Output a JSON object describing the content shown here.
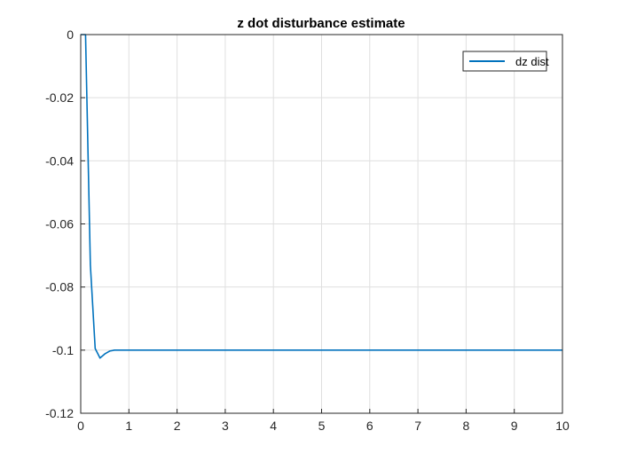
{
  "chart_data": {
    "type": "line",
    "title": "z dot disturbance estimate",
    "xlabel": "",
    "ylabel": "",
    "xlim": [
      0,
      10
    ],
    "ylim": [
      -0.12,
      0
    ],
    "xticks": [
      0,
      1,
      2,
      3,
      4,
      5,
      6,
      7,
      8,
      9,
      10
    ],
    "xtick_labels": [
      "0",
      "1",
      "2",
      "3",
      "4",
      "5",
      "6",
      "7",
      "8",
      "9",
      "10"
    ],
    "yticks": [
      0,
      -0.02,
      -0.04,
      -0.06,
      -0.08,
      -0.1,
      -0.12
    ],
    "ytick_labels": [
      "0",
      "-0.02",
      "-0.04",
      "-0.06",
      "-0.08",
      "-0.1",
      "-0.12"
    ],
    "grid": true,
    "legend_position": "top-right",
    "series": [
      {
        "name": "dz dist",
        "color": "#0072BD",
        "x": [
          0,
          0.1,
          0.2,
          0.3,
          0.4,
          0.5,
          0.6,
          0.7,
          0.8,
          1.0,
          2.0,
          3.0,
          4.0,
          5.0,
          6.0,
          7.0,
          8.0,
          9.0,
          10.0
        ],
        "y": [
          0,
          0,
          -0.073,
          -0.0995,
          -0.1025,
          -0.1012,
          -0.1003,
          -0.1,
          -0.1,
          -0.1,
          -0.1,
          -0.1,
          -0.1,
          -0.1,
          -0.1,
          -0.1,
          -0.1,
          -0.1,
          -0.1
        ]
      }
    ]
  }
}
